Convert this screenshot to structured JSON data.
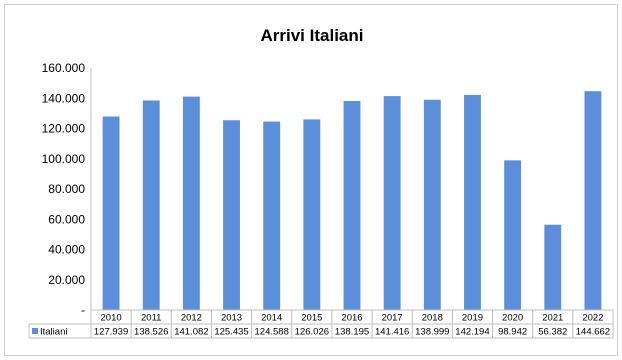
{
  "chart_data": {
    "type": "bar",
    "title": "Arrivi Italiani",
    "categories": [
      "2010",
      "2011",
      "2012",
      "2013",
      "2014",
      "2015",
      "2016",
      "2017",
      "2018",
      "2019",
      "2020",
      "2021",
      "2022"
    ],
    "series": [
      {
        "name": "Italiani",
        "values": [
          127939,
          138526,
          141082,
          125435,
          124588,
          126026,
          138195,
          141416,
          138999,
          142194,
          98942,
          56382,
          144662
        ],
        "labels": [
          "127.939",
          "138.526",
          "141.082",
          "125.435",
          "124.588",
          "126.026",
          "138.195",
          "141.416",
          "138.999",
          "142.194",
          "98.942",
          "56.382",
          "144.662"
        ]
      }
    ],
    "ylim": [
      0,
      160000
    ],
    "yticks": [
      0,
      20000,
      40000,
      60000,
      80000,
      100000,
      120000,
      140000,
      160000
    ],
    "ytick_labels": [
      "-",
      "20.000",
      "40.000",
      "60.000",
      "80.000",
      "100.000",
      "120.000",
      "140.000",
      "160.000"
    ],
    "grid": false,
    "legend": "data-table",
    "bar_color": "#5b8fd9"
  }
}
